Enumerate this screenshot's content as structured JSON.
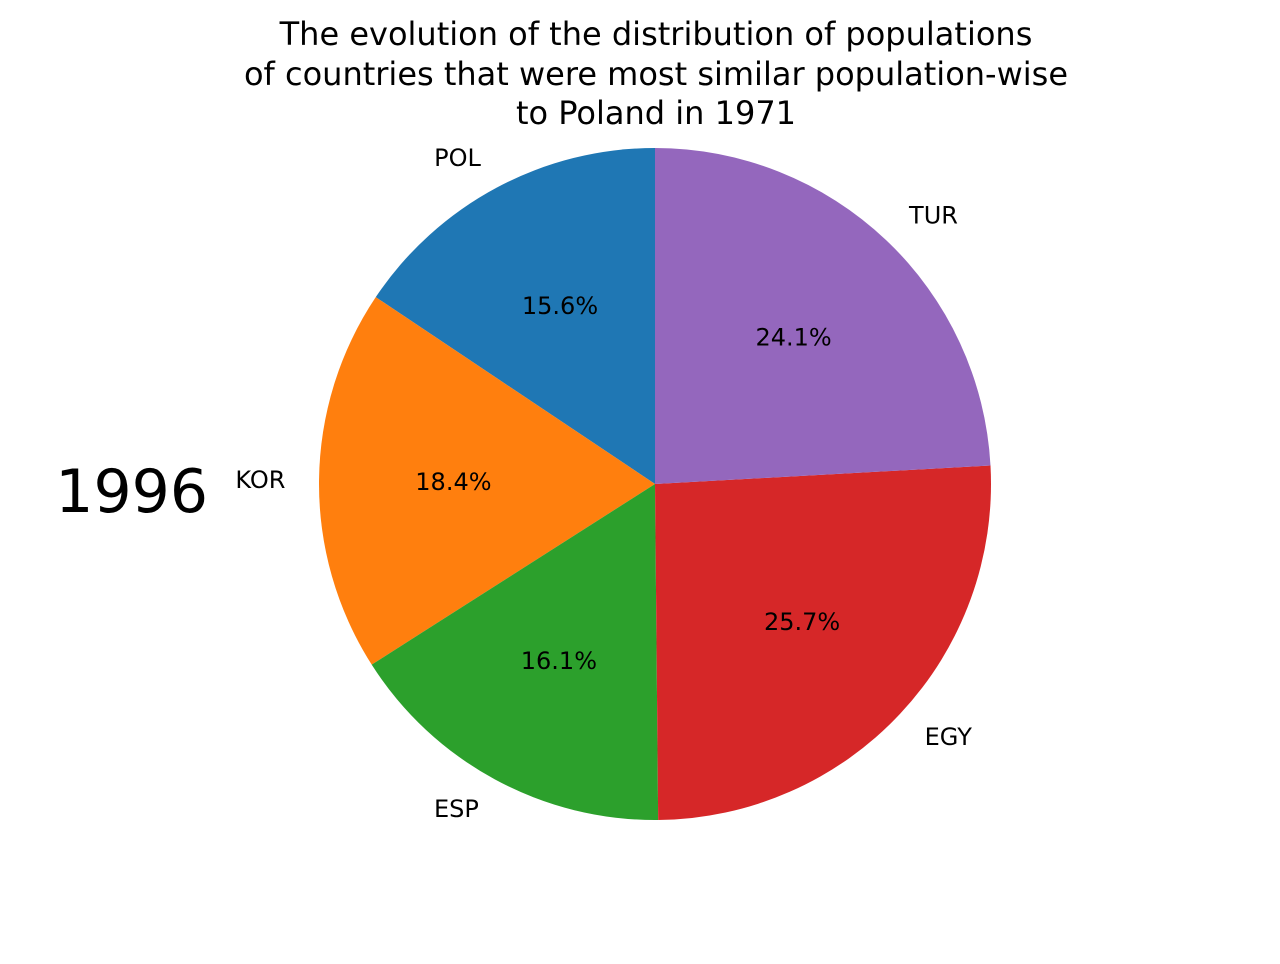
{
  "chart_data": {
    "type": "pie",
    "title": [
      "The evolution of the distribution of populations",
      "of countries that were most similar population-wise",
      "to Poland in 1971"
    ],
    "side_label": "1996",
    "start_angle_deg": 90,
    "direction": "counterclockwise",
    "slices": [
      {
        "label": "POL",
        "value": 15.6,
        "pct_text": "15.6%",
        "color": "#1f77b4"
      },
      {
        "label": "KOR",
        "value": 18.4,
        "pct_text": "18.4%",
        "color": "#ff7f0e"
      },
      {
        "label": "ESP",
        "value": 16.1,
        "pct_text": "16.1%",
        "color": "#2ca02c"
      },
      {
        "label": "EGY",
        "value": 25.7,
        "pct_text": "25.7%",
        "color": "#d62728"
      },
      {
        "label": "TUR",
        "value": 24.1,
        "pct_text": "24.1%",
        "color": "#9467bd"
      }
    ]
  }
}
